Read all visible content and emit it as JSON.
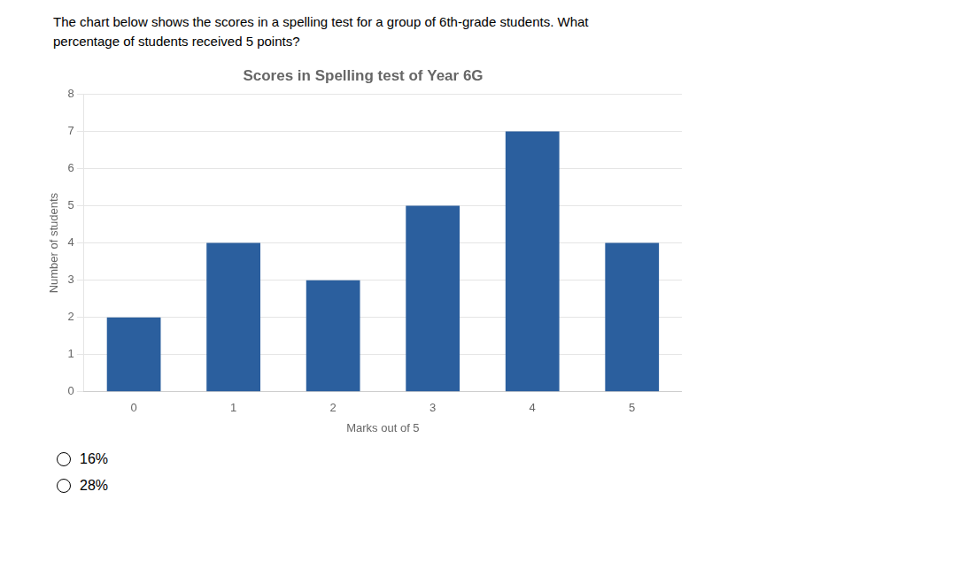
{
  "chart_data": {
    "type": "bar",
    "title": "Scores in Spelling test of Year 6G",
    "xlabel": "Marks out of 5",
    "ylabel": "Number of students",
    "categories": [
      0,
      1,
      2,
      3,
      4,
      5
    ],
    "values": [
      2,
      4,
      3,
      5,
      7,
      4
    ],
    "color": "#2B5F9E",
    "ylim": [
      0,
      8
    ],
    "yticks": [
      0,
      1,
      2,
      3,
      4,
      5,
      6,
      7,
      8
    ],
    "grid": true,
    "question": [
      "The chart below shows the scores in a spelling test for a group of 6th-grade students. What",
      "percentage of students received 5 points?"
    ],
    "answer_options": [
      "16%",
      "28%"
    ]
  }
}
